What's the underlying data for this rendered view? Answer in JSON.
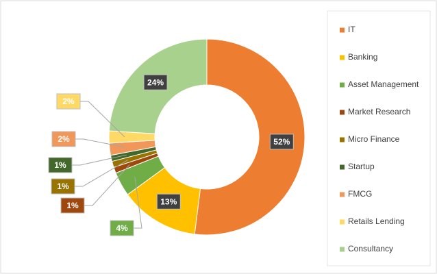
{
  "chart_data": {
    "type": "donut",
    "categories": [
      "IT",
      "Banking",
      "Asset Management",
      "Market Research",
      "Micro Finance",
      "Startup",
      "FMCG",
      "Retails Lending",
      "Consultancy"
    ],
    "values": [
      52,
      13,
      4,
      1,
      1,
      1,
      2,
      2,
      24
    ],
    "value_labels": [
      "52%",
      "13%",
      "4%",
      "1%",
      "1%",
      "1%",
      "2%",
      "2%",
      "24%"
    ],
    "colors": [
      "#ED7D31",
      "#FFC000",
      "#70AD47",
      "#9E480E",
      "#997300",
      "#43682B",
      "#F1975A",
      "#FFD966",
      "#A9D18E"
    ],
    "legend": "right"
  }
}
